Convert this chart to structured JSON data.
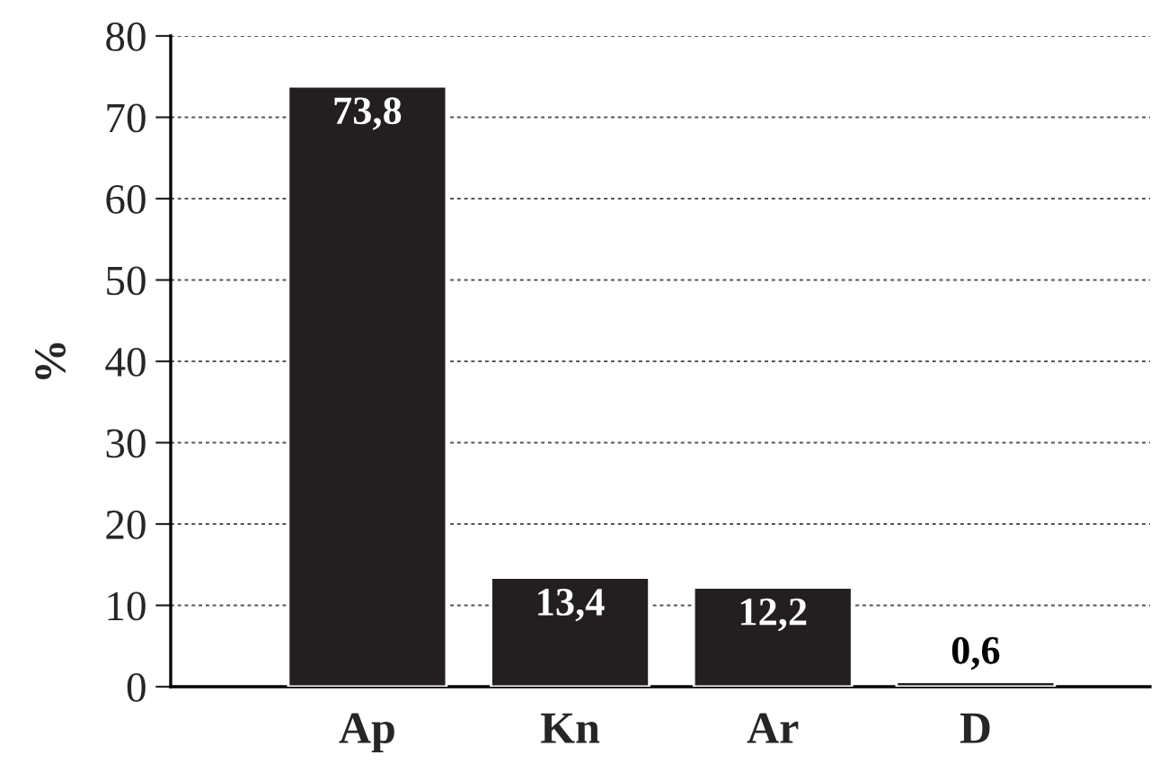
{
  "chart_data": {
    "type": "bar",
    "ylabel": "%",
    "categories": [
      "Ap",
      "Kn",
      "Ar",
      "D"
    ],
    "values": [
      73.8,
      13.4,
      12.2,
      0.6
    ],
    "color": "#231f20",
    "value_labels": [
      "73,8",
      "13,4",
      "12,2",
      "0,6"
    ],
    "ylim": [
      0,
      80
    ],
    "yticks": [
      0,
      10,
      20,
      30,
      40,
      50,
      60,
      70,
      80
    ],
    "grid": "y"
  }
}
